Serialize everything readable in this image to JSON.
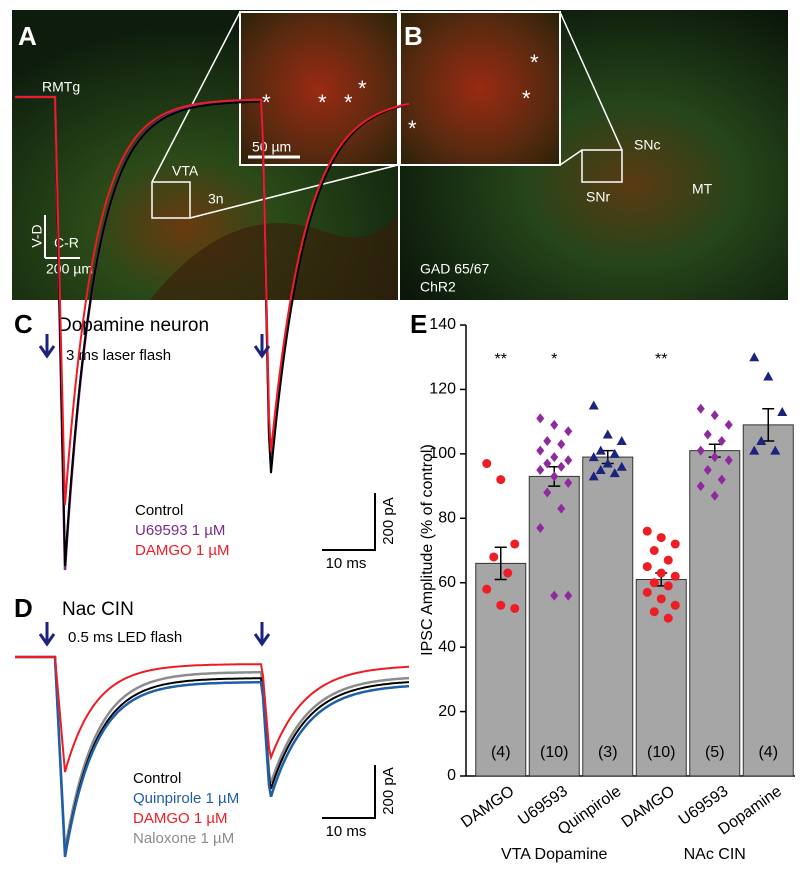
{
  "panel_a": {
    "label": "A",
    "regions": [
      "RMTg",
      "VTA",
      "3n"
    ],
    "inset_scale": "50 µm",
    "orientation": [
      "V-D",
      "C-R"
    ],
    "scale": "200 µm"
  },
  "panel_b": {
    "label": "B",
    "regions": [
      "SNc",
      "SNr",
      "MT"
    ],
    "stains": [
      {
        "name": "GAD 65/67",
        "color": "#22dd22"
      },
      {
        "name": "ChR2",
        "color": "#ee2222"
      }
    ]
  },
  "panel_c": {
    "label": "C",
    "title": "Dopamine neuron",
    "stimulus": "3 ms laser flash",
    "legend": [
      {
        "name": "Control",
        "color": "#000000"
      },
      {
        "name": "U69593 1 µM",
        "color": "#7b2a8e"
      },
      {
        "name": "DAMGO 1 µM",
        "color": "#ee1c24"
      }
    ],
    "scale_x": "10 ms",
    "scale_y": "200 pA"
  },
  "panel_d": {
    "label": "D",
    "title": "Nac CIN",
    "stimulus": "0.5 ms LED flash",
    "legend": [
      {
        "name": "Control",
        "color": "#000000"
      },
      {
        "name": "Quinpirole 1 µM",
        "color": "#1f5fa8"
      },
      {
        "name": "DAMGO 1 µM",
        "color": "#ee1c24"
      },
      {
        "name": "Naloxone 1 µM",
        "color": "#8c8c8c"
      }
    ],
    "scale_x": "10 ms",
    "scale_y": "200 pA"
  },
  "chart_data": {
    "type": "bar",
    "label": "E",
    "ylabel": "IPSC Amplitude (% of control)",
    "categories": [
      "DAMGO",
      "U69593",
      "Quinpirole",
      "DAMGO",
      "U69593",
      "Dopamine"
    ],
    "values": [
      66,
      93,
      99,
      61,
      101,
      109
    ],
    "errors": [
      5,
      3,
      2,
      2,
      2,
      5
    ],
    "n_labels": [
      "(4)",
      "(10)",
      "(3)",
      "(10)",
      "(5)",
      "(4)"
    ],
    "significance": [
      "**",
      "*",
      null,
      "**",
      null,
      null
    ],
    "groups": [
      "VTA Dopamine",
      "NAc CIN"
    ],
    "color": "#a6a6a6",
    "points": [
      [
        97,
        92,
        72,
        68,
        63,
        58,
        53,
        52
      ],
      [
        111,
        109,
        107,
        104,
        103,
        101,
        99,
        98,
        97,
        96,
        95,
        93,
        91,
        88,
        83,
        77,
        56,
        56
      ],
      [
        115,
        106,
        104,
        101,
        100,
        99,
        97,
        96,
        95,
        94,
        93
      ],
      [
        76,
        74,
        72,
        70,
        67,
        65,
        63,
        62,
        60,
        59,
        57,
        55,
        53,
        51,
        49
      ],
      [
        114,
        112,
        109,
        106,
        104,
        101,
        99,
        98,
        95,
        92,
        90,
        87
      ],
      [
        130,
        124,
        113,
        104,
        101,
        101
      ]
    ],
    "point_colors": [
      "#ee1c24",
      "#8e2a9e",
      "#1a237e",
      "#ee1c24",
      "#8e2a9e",
      "#1a237e"
    ],
    "point_markers": [
      "circle",
      "diamond",
      "triangle",
      "circle",
      "diamond",
      "triangle"
    ],
    "ylim": [
      0,
      140
    ],
    "yticks": [
      0,
      20,
      40,
      60,
      80,
      100,
      120,
      140
    ]
  }
}
